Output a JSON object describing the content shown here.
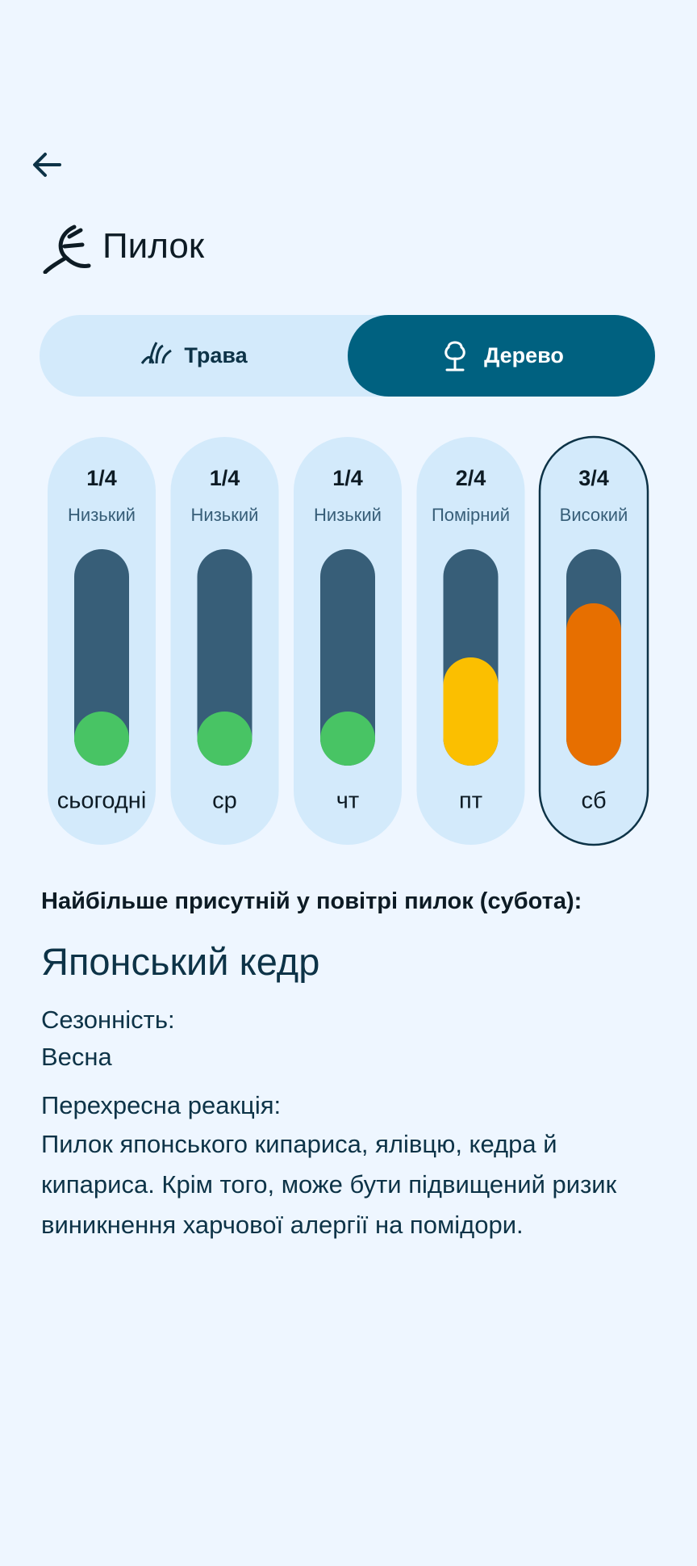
{
  "header": {
    "title": "Пилок"
  },
  "tabs": [
    {
      "label": "Трава",
      "selected": false
    },
    {
      "label": "Дерево",
      "selected": true
    }
  ],
  "scale_max": 4,
  "days": [
    {
      "score": {
        "value": 1,
        "label": "1/4"
      },
      "level": "Низький",
      "day": "сьогодні",
      "color": "#48c464",
      "selected": false
    },
    {
      "score": {
        "value": 1,
        "label": "1/4"
      },
      "level": "Низький",
      "day": "ср",
      "color": "#48c464",
      "selected": false
    },
    {
      "score": {
        "value": 1,
        "label": "1/4"
      },
      "level": "Низький",
      "day": "чт",
      "color": "#48c464",
      "selected": false
    },
    {
      "score": {
        "value": 2,
        "label": "2/4"
      },
      "level": "Помірний",
      "day": "пт",
      "color": "#fbbf00",
      "selected": false
    },
    {
      "score": {
        "value": 3,
        "label": "3/4"
      },
      "level": "Високий",
      "day": "сб",
      "color": "#e76f00",
      "selected": true
    }
  ],
  "section": {
    "heading": "Найбільше присутній у повітрі пилок (субота):",
    "name": "Японський кедр",
    "seasonality_label": "Сезонність:",
    "seasonality": "Весна",
    "cross_label": "Перехресна реакція:",
    "cross": "Пилок японського кипариса, ялівцю, кедра й кипариса. Крім того, може бути підвищений ризик виникнення харчової алергії на помідори."
  }
}
